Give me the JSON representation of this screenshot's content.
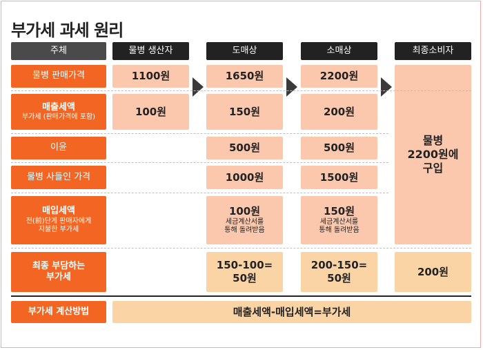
{
  "title": "부가세 과세 원리",
  "headers": {
    "subject": "주체",
    "producer": "물병 생산자",
    "wholesaler": "도매상",
    "retailer": "소매상",
    "consumer": "최종소비자"
  },
  "row_labels": {
    "sale_price": "물병 판매가격",
    "sales_tax_main": "매출세액",
    "sales_tax_sub": "부가세 (판매가격에 포함)",
    "profit": "이윤",
    "purchase_price": "물병 사들인 가격",
    "purchase_tax_main": "매입세액",
    "purchase_tax_sub1": "전(前)단계 판매자에게",
    "purchase_tax_sub2": "지불한 부가세",
    "final_burden1": "최종 부담하는",
    "final_burden2": "부가세",
    "calc_method": "부가세 계산방법"
  },
  "producer": {
    "sale_price": "1100원",
    "sales_tax": "100원"
  },
  "wholesaler": {
    "sale_price": "1650원",
    "sales_tax": "150원",
    "profit": "500원",
    "purchase_price": "1000원",
    "purchase_tax": "100원",
    "invoice1": "세금계산서를",
    "invoice2": "통해 돌려받음",
    "final1": "150-100=",
    "final2": "50원"
  },
  "retailer": {
    "sale_price": "2200원",
    "sales_tax": "200원",
    "profit": "500원",
    "purchase_price": "1500원",
    "purchase_tax": "150원",
    "invoice1": "세금계산서를",
    "invoice2": "통해 돌려받음",
    "final1": "200-150=",
    "final2": "50원"
  },
  "consumer": {
    "purchase1": "물병",
    "purchase2": "2200원에",
    "purchase3": "구입",
    "final": "200원"
  },
  "formula": "매출세액-매입세액=부가세",
  "colors": {
    "label_orange": "#f26522",
    "cell_pink": "#fbc7ad",
    "cell_peach": "#fbd4a6",
    "header_dark": "#222222"
  }
}
